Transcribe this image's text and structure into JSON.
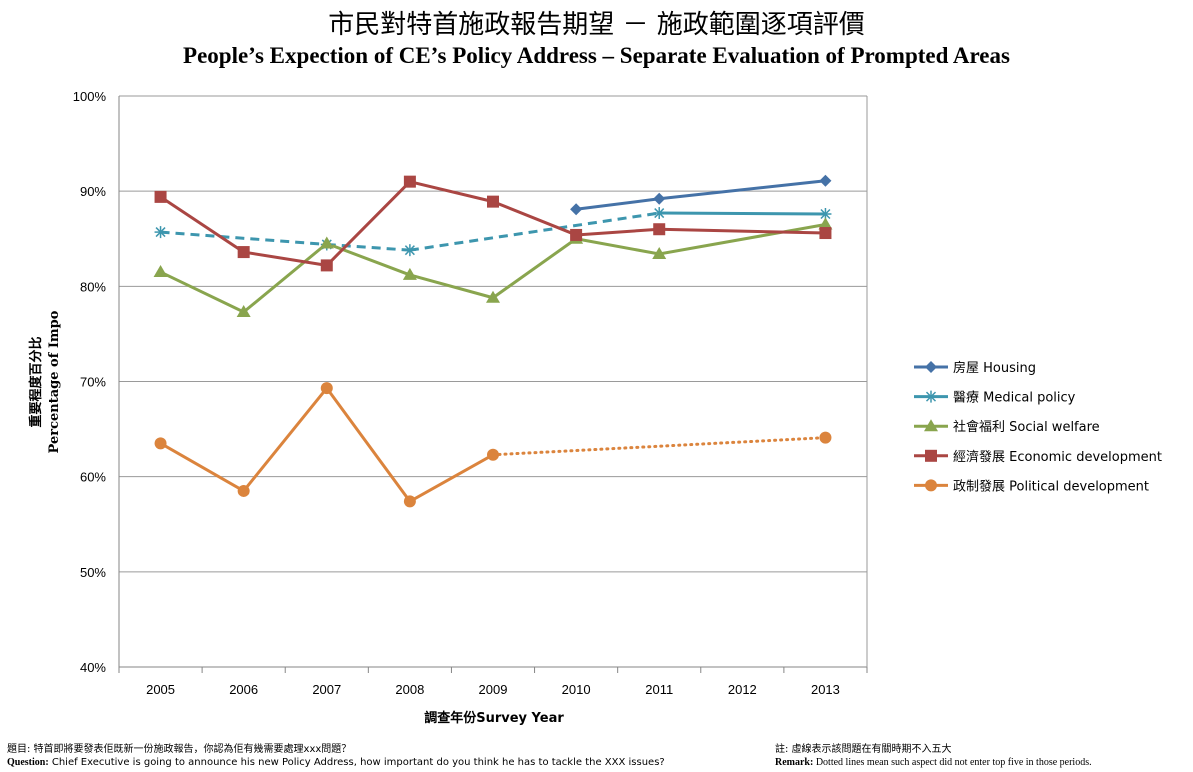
{
  "title_zh": "市民對特首施政報告期望 － 施政範圍逐項評價",
  "title_en": "People’s Expection of CE’s Policy Address – Separate Evaluation of Prompted Areas",
  "footnote": {
    "question_zh": "題目: 特首即將要發表佢既新一份施政報告，你認為佢有幾需要處理xxx問題？",
    "question_en_label": "Question:",
    "question_en": "Chief Executive is going to announce his new Policy Address, how important do you think he has to tackle the XXX issues?",
    "remark_zh": "註: 虛線表示該問題在有關時期不入五大",
    "remark_en_label": "Remark:",
    "remark_en": "Dotted lines mean such aspect did not enter top five in those periods."
  },
  "chart_data": {
    "type": "line",
    "categories": [
      "2005",
      "2006",
      "2007",
      "2008",
      "2009",
      "2010",
      "2011",
      "2012",
      "2013"
    ],
    "y_ticks": [
      "40%",
      "50%",
      "60%",
      "70%",
      "80%",
      "90%",
      "100%"
    ],
    "ylim": [
      40,
      100
    ],
    "ylabel_zh": "重要程度百分比",
    "ylabel_en": "Percentage of Impo",
    "xlabel": "調查年份Survey Year",
    "grid": "horizontal",
    "legend_position": "right",
    "series": [
      {
        "name": "房屋 Housing",
        "color": "#4572a7",
        "marker": "diamond",
        "values": [
          null,
          null,
          null,
          null,
          null,
          88.1,
          89.2,
          null,
          91.1
        ],
        "dotted_segments": []
      },
      {
        "name": "醫療 Medical policy",
        "color": "#3d96ae",
        "marker": "star",
        "values": [
          85.7,
          null,
          84.4,
          83.8,
          null,
          null,
          87.7,
          null,
          87.6
        ],
        "dotted_segments": [
          [
            0,
            2
          ],
          [
            2,
            3
          ],
          [
            3,
            6
          ]
        ]
      },
      {
        "name": "社會福利 Social welfare",
        "color": "#89a54e",
        "marker": "triangle",
        "values": [
          81.5,
          77.3,
          84.5,
          81.2,
          78.8,
          85.0,
          83.4,
          null,
          86.5
        ],
        "dotted_segments": []
      },
      {
        "name": "經濟發展 Economic development",
        "color": "#aa4643",
        "marker": "square",
        "values": [
          89.4,
          83.6,
          82.2,
          91.0,
          88.9,
          85.4,
          86.0,
          null,
          85.6
        ],
        "dotted_segments": []
      },
      {
        "name": "政制發展 Political development",
        "color": "#db843d",
        "marker": "circle",
        "values": [
          63.5,
          58.5,
          69.3,
          57.4,
          62.3,
          null,
          null,
          null,
          64.1
        ],
        "dotted_segments": [
          [
            4,
            8
          ]
        ]
      }
    ]
  }
}
